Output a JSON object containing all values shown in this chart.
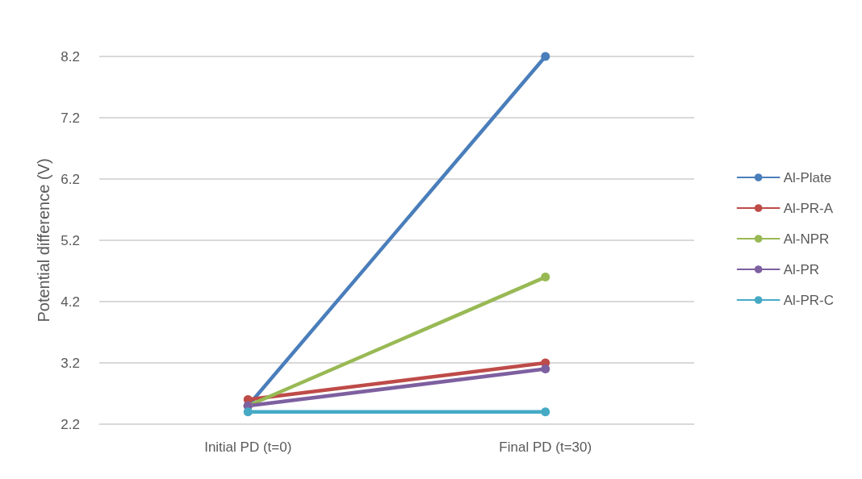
{
  "chart_data": {
    "type": "line",
    "ylabel": "Potential difference (V)",
    "categories": [
      "Initial PD (t=0)",
      "Final PD (t=30)"
    ],
    "series": [
      {
        "name": "Al-Plate",
        "color": "#4a7ebb",
        "values": [
          2.5,
          8.2
        ]
      },
      {
        "name": "Al-PR-A",
        "color": "#be4b48",
        "values": [
          2.6,
          3.2
        ]
      },
      {
        "name": "Al-NPR",
        "color": "#98b954",
        "values": [
          2.5,
          4.6
        ]
      },
      {
        "name": "Al-PR",
        "color": "#7d60a0",
        "values": [
          2.5,
          3.1
        ]
      },
      {
        "name": "Al-PR-C",
        "color": "#46aac5",
        "values": [
          2.4,
          2.4
        ]
      }
    ],
    "ylim": [
      2.2,
      8.2
    ],
    "yticks": [
      2.2,
      3.2,
      4.2,
      5.2,
      6.2,
      7.2,
      8.2
    ],
    "grid": "y",
    "legend": "right",
    "marker": "circle",
    "line_style": "solid"
  }
}
